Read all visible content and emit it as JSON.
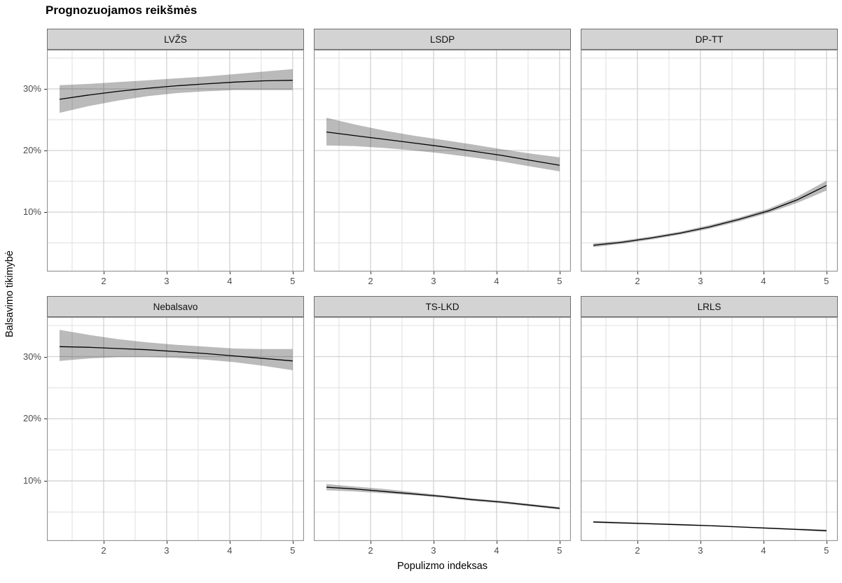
{
  "title": "Prognozuojamos reikšmės",
  "axes": {
    "x_label": "Populizmo indeksas",
    "y_label": "Balsavimo tikimybė",
    "x_domain": [
      1.1,
      5.18
    ],
    "y_domain": [
      0.34,
      36.36
    ],
    "x_major_ticks": [
      2,
      3,
      4,
      5
    ],
    "x_major_labels": [
      "2",
      "3",
      "4",
      "5"
    ],
    "x_minor_ticks": [
      1.5,
      2.5,
      3.5,
      4.5
    ],
    "y_major_ticks": [
      10,
      20,
      30
    ],
    "y_major_labels": [
      "10%",
      "20%",
      "30%"
    ],
    "y_minor_ticks": [
      5,
      15,
      25,
      35
    ],
    "grid": "on",
    "legend": "none"
  },
  "colors": {
    "line": "#000000",
    "ribbon": "rgba(0,0,0,0.27)",
    "strip_bg": "#d3d3d3",
    "strip_border": "#6e6e6e",
    "panel_border": "#949494",
    "grid_major": "#d2d2d2",
    "grid_minor": "#e4e4e4",
    "axis_text": "#4d4d4d",
    "tick_mark": "#333333"
  },
  "chart_data": {
    "type": "line",
    "title": "Prognozuojamos reikšmės",
    "xlabel": "Populizmo indeksas",
    "ylabel": "Balsavimo tikimybė",
    "units": "percent",
    "xlim": [
      1.1,
      5.18
    ],
    "ylim": [
      0.34,
      36.36
    ],
    "x": [
      1.3,
      1.76,
      2.23,
      2.69,
      3.15,
      3.61,
      4.08,
      4.54,
      5.0
    ],
    "facets": [
      {
        "label": "LVŽS",
        "row": 0,
        "col": 0,
        "y": [
          28.3,
          29.0,
          29.6,
          30.1,
          30.5,
          30.8,
          31.1,
          31.3,
          31.4
        ],
        "lo": [
          26.1,
          27.2,
          28.1,
          28.8,
          29.3,
          29.6,
          29.8,
          29.8,
          29.8
        ],
        "hi": [
          30.6,
          30.8,
          31.1,
          31.4,
          31.7,
          32.0,
          32.4,
          32.8,
          33.2
        ]
      },
      {
        "label": "LSDP",
        "row": 0,
        "col": 1,
        "y": [
          23.0,
          22.4,
          21.8,
          21.2,
          20.6,
          19.9,
          19.2,
          18.4,
          17.6
        ],
        "lo": [
          20.8,
          20.7,
          20.4,
          20.0,
          19.5,
          18.9,
          18.2,
          17.4,
          16.6
        ],
        "hi": [
          25.3,
          24.2,
          23.2,
          22.4,
          21.7,
          21.0,
          20.2,
          19.5,
          18.9
        ]
      },
      {
        "label": "DP-TT",
        "row": 0,
        "col": 2,
        "y": [
          4.6,
          5.1,
          5.8,
          6.6,
          7.6,
          8.8,
          10.2,
          12.0,
          14.3
        ],
        "lo": [
          4.3,
          4.85,
          5.55,
          6.35,
          7.3,
          8.5,
          9.85,
          11.5,
          13.5
        ],
        "hi": [
          4.9,
          5.35,
          6.05,
          6.85,
          7.9,
          9.1,
          10.55,
          12.5,
          15.1
        ]
      },
      {
        "label": "Nebalsavo",
        "row": 1,
        "col": 0,
        "y": [
          31.6,
          31.5,
          31.3,
          31.1,
          30.8,
          30.5,
          30.1,
          29.7,
          29.3
        ],
        "lo": [
          29.3,
          29.7,
          29.9,
          29.9,
          29.8,
          29.5,
          29.1,
          28.5,
          27.8
        ],
        "hi": [
          34.3,
          33.5,
          32.8,
          32.3,
          31.9,
          31.6,
          31.3,
          31.2,
          31.2
        ]
      },
      {
        "label": "TS-LKD",
        "row": 1,
        "col": 1,
        "y": [
          9.0,
          8.7,
          8.3,
          7.9,
          7.5,
          7.0,
          6.6,
          6.1,
          5.6
        ],
        "lo": [
          8.5,
          8.3,
          8.0,
          7.7,
          7.3,
          6.8,
          6.4,
          5.9,
          5.4
        ],
        "hi": [
          9.5,
          9.1,
          8.7,
          8.2,
          7.7,
          7.2,
          6.8,
          6.3,
          5.8
        ]
      },
      {
        "label": "LRLS",
        "row": 1,
        "col": 2,
        "y": [
          3.4,
          3.25,
          3.1,
          2.95,
          2.8,
          2.6,
          2.4,
          2.2,
          2.0
        ],
        "lo": [
          3.25,
          3.1,
          3.0,
          2.85,
          2.7,
          2.5,
          2.3,
          2.1,
          1.85
        ],
        "hi": [
          3.55,
          3.4,
          3.25,
          3.1,
          2.9,
          2.7,
          2.5,
          2.35,
          2.15
        ]
      }
    ]
  }
}
